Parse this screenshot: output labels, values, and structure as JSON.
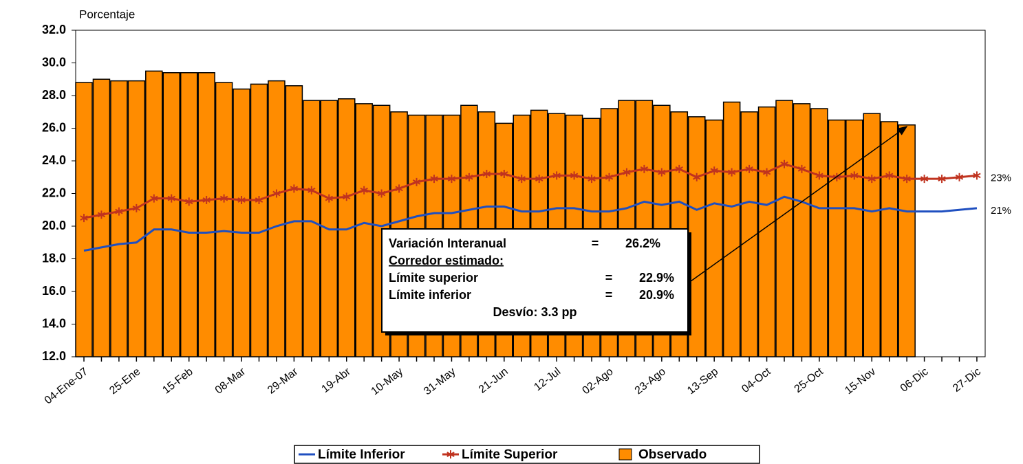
{
  "chart_data": {
    "type": "bar-line",
    "ylabel": "Porcentaje",
    "categories": [
      "04-Ene-07",
      null,
      null,
      "25-Ene",
      null,
      null,
      "15-Feb",
      null,
      null,
      "08-Mar",
      null,
      null,
      "29-Mar",
      null,
      null,
      "19-Abr",
      null,
      null,
      "10-May",
      null,
      null,
      "31-May",
      null,
      null,
      "21-Jun",
      null,
      null,
      "12-Jul",
      null,
      null,
      "02-Ago",
      null,
      null,
      "23-Ago",
      null,
      null,
      "13-Sep",
      null,
      null,
      "04-Oct",
      null,
      null,
      "25-Oct",
      null,
      null,
      "15-Nov",
      null,
      null,
      "06-Dic",
      null,
      null,
      "27-Dic"
    ],
    "ylim": [
      12,
      32
    ],
    "yticks": [
      {
        "value": 12,
        "label": "12.0"
      },
      {
        "value": 14,
        "label": "14.0"
      },
      {
        "value": 16,
        "label": "16.0"
      },
      {
        "value": 18,
        "label": "18.0"
      },
      {
        "value": 20,
        "label": "20.0"
      },
      {
        "value": 22,
        "label": "22.0"
      },
      {
        "value": 24,
        "label": "24.0"
      },
      {
        "value": 26,
        "label": "26.0"
      },
      {
        "value": 28,
        "label": "28.0"
      },
      {
        "value": 30,
        "label": "30.0"
      },
      {
        "value": 32,
        "label": "32.0"
      }
    ],
    "series": [
      {
        "name": "Límite Inferior",
        "kind": "line",
        "color": "#1f4fc0",
        "end_label": "21%",
        "values": [
          18.5,
          18.7,
          18.9,
          19.0,
          19.8,
          19.8,
          19.6,
          19.6,
          19.7,
          19.6,
          19.6,
          20.0,
          20.3,
          20.3,
          19.8,
          19.8,
          20.2,
          20.0,
          20.3,
          20.6,
          20.8,
          20.8,
          21.0,
          21.2,
          21.2,
          20.9,
          20.9,
          21.1,
          21.1,
          20.9,
          20.9,
          21.1,
          21.5,
          21.3,
          21.5,
          21.0,
          21.4,
          21.2,
          21.5,
          21.3,
          21.8,
          21.5,
          21.1,
          21.1,
          21.1,
          20.9,
          21.1,
          20.9,
          20.9,
          20.9,
          21.0,
          21.1
        ]
      },
      {
        "name": "Límite Superior",
        "kind": "line-star",
        "color": "#c0331f",
        "end_label": "23%",
        "values": [
          20.5,
          20.7,
          20.9,
          21.1,
          21.7,
          21.7,
          21.5,
          21.6,
          21.7,
          21.6,
          21.6,
          22.0,
          22.3,
          22.2,
          21.7,
          21.8,
          22.2,
          22.0,
          22.3,
          22.7,
          22.9,
          22.9,
          23.0,
          23.2,
          23.2,
          22.9,
          22.9,
          23.1,
          23.1,
          22.9,
          23.0,
          23.3,
          23.5,
          23.3,
          23.5,
          23.0,
          23.4,
          23.3,
          23.5,
          23.3,
          23.8,
          23.5,
          23.1,
          23.0,
          23.1,
          22.9,
          23.1,
          22.9,
          22.9,
          22.9,
          23.0,
          23.1
        ]
      },
      {
        "name": "Observado",
        "kind": "bar",
        "color": "#ff8c00",
        "values": [
          28.8,
          29.0,
          28.9,
          28.9,
          29.5,
          29.4,
          29.4,
          29.4,
          28.8,
          28.4,
          28.7,
          28.9,
          28.6,
          27.7,
          27.7,
          27.8,
          27.5,
          27.4,
          27.0,
          26.8,
          26.8,
          26.8,
          27.4,
          27.0,
          26.3,
          26.8,
          27.1,
          26.9,
          26.8,
          26.6,
          27.2,
          27.7,
          27.7,
          27.4,
          27.0,
          26.7,
          26.5,
          27.6,
          27.0,
          27.3,
          27.7,
          27.5,
          27.2,
          26.5,
          26.5,
          26.9,
          26.4,
          26.2,
          null,
          null,
          null,
          null
        ]
      }
    ],
    "annotation": [
      [
        "Variación Interanual",
        "=",
        "26.2%"
      ],
      [
        "Corredor estimado:"
      ],
      [
        "Límite superior",
        "=",
        "22.9%"
      ],
      [
        "Límite inferior",
        "=",
        "20.9%"
      ],
      [
        "Desvío: 3.3 pp"
      ]
    ]
  }
}
